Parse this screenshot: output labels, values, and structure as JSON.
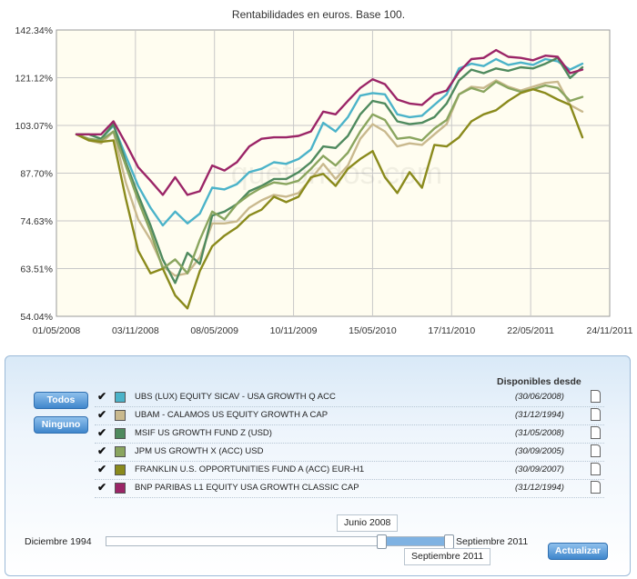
{
  "chart_data": {
    "type": "line",
    "title": "Rentabilidades en euros. Base 100.",
    "watermark": "quefondos.com",
    "y_ticks": [
      "142.34%",
      "121.12%",
      "103.07%",
      "87.70%",
      "74.63%",
      "63.51%",
      "54.04%"
    ],
    "y_tick_values": [
      142.34,
      121.12,
      103.07,
      87.7,
      74.63,
      63.51,
      54.04
    ],
    "x_ticks": [
      "01/05/2008",
      "03/11/2008",
      "08/05/2009",
      "10/11/2009",
      "15/05/2010",
      "17/11/2010",
      "22/05/2011",
      "24/11/2011"
    ],
    "ylim": [
      54.04,
      142.34
    ],
    "scale": "log",
    "grid": true,
    "background": "#fffdf0",
    "series": [
      {
        "name": "UBS (LUX) EQUITY SICAV - USA GROWTH Q ACC",
        "color": "#4bb3c9",
        "values": [
          100,
          100,
          98.5,
          103,
          93,
          84,
          78,
          73.5,
          77,
          74,
          76.5,
          83.5,
          83,
          84.5,
          88,
          89,
          91,
          90.5,
          92,
          95,
          104,
          101,
          106,
          114,
          115,
          114.5,
          107,
          106,
          106.5,
          110.5,
          114.5,
          125,
          127,
          126,
          129,
          126.5,
          127.5,
          126.5,
          129,
          128,
          124.5,
          127
        ]
      },
      {
        "name": "UBAM - CALAMOS US EQUITY GROWTH A CAP",
        "color": "#c9b98e",
        "values": [
          100,
          98,
          97,
          101,
          85,
          75,
          70,
          64,
          62,
          62.5,
          66,
          74,
          74,
          74.5,
          78,
          80,
          81.5,
          81,
          82,
          86,
          90.5,
          86,
          90,
          98.5,
          103.5,
          101,
          96,
          97,
          96.5,
          100,
          103.5,
          114.5,
          117.5,
          117,
          120,
          117.5,
          116,
          117.5,
          119,
          119.5,
          110.5,
          108
        ]
      },
      {
        "name": "MSIF US GROWTH FUND Z (USD)",
        "color": "#4f8a5e",
        "values": [
          100,
          100,
          98.5,
          103.5,
          91,
          81.5,
          73.5,
          65.5,
          60.5,
          67,
          64.5,
          76,
          77,
          79,
          82.5,
          84,
          86,
          86,
          88,
          91,
          96,
          95.5,
          99.5,
          107,
          112,
          111,
          104.5,
          103.5,
          104,
          106,
          111,
          120,
          124.5,
          123,
          125,
          124,
          125.5,
          125,
          127,
          129.5,
          121,
          125.5
        ]
      },
      {
        "name": "JPM US GROWTH X (ACC) USD",
        "color": "#8aa55f",
        "values": [
          100,
          98.5,
          98,
          101,
          90,
          80,
          72,
          63.5,
          65.5,
          62.5,
          70,
          77,
          75,
          79,
          81.5,
          83.5,
          85,
          84.5,
          85.5,
          89,
          93,
          90,
          94,
          101,
          107,
          105,
          98.5,
          99,
          98,
          102,
          105,
          114.5,
          117,
          115.5,
          119.5,
          117,
          115.5,
          116.5,
          118,
          117,
          112,
          113.5
        ]
      },
      {
        "name": "FRANKLIN U.S. OPPORTUNITIES FUND A (ACC) EUR-H1",
        "color": "#8a8a1c",
        "values": [
          100,
          98,
          97.5,
          98,
          80.5,
          67.5,
          62.5,
          63.5,
          58,
          55.5,
          63,
          68.5,
          71,
          73,
          76,
          77.5,
          81,
          79.5,
          81,
          86.5,
          87.5,
          84,
          89,
          92,
          94.5,
          86.5,
          82,
          88,
          83.5,
          96.5,
          96,
          99,
          104.5,
          107,
          108.5,
          112,
          115,
          116.5,
          115,
          112.5,
          110.5,
          99
        ]
      },
      {
        "name": "BNP PARIBAS L1 EQUITY USA GROWTH CLASSIC CAP",
        "color": "#9b2567",
        "values": [
          100,
          100,
          100,
          104.5,
          97,
          89.5,
          85.5,
          81.5,
          86.5,
          81.5,
          82.5,
          90,
          88.5,
          91,
          96,
          98.5,
          99,
          99,
          99.5,
          101,
          108,
          107,
          112,
          117,
          120.5,
          118.5,
          112.5,
          111,
          110.5,
          114.5,
          116,
          123.5,
          129,
          129.5,
          133,
          130,
          129.5,
          128.5,
          130.5,
          130,
          123,
          124.5
        ]
      }
    ]
  },
  "legend": {
    "header": "Disponibles desde",
    "check_mark": "✔",
    "items": [
      {
        "name": "UBS (LUX) EQUITY SICAV - USA GROWTH Q ACC",
        "date": "(30/06/2008)",
        "color": "#4bb3c9"
      },
      {
        "name": "UBAM - CALAMOS US EQUITY GROWTH A CAP",
        "date": "(31/12/1994)",
        "color": "#c9b98e"
      },
      {
        "name": "MSIF US GROWTH FUND Z (USD)",
        "date": "(31/05/2008)",
        "color": "#4f8a5e"
      },
      {
        "name": "JPM US GROWTH X (ACC) USD",
        "date": "(30/09/2005)",
        "color": "#8aa55f"
      },
      {
        "name": "FRANKLIN U.S. OPPORTUNITIES FUND A (ACC) EUR-H1",
        "date": "(30/09/2007)",
        "color": "#8a8a1c"
      },
      {
        "name": "BNP PARIBAS L1 EQUITY USA GROWTH CLASSIC CAP",
        "date": "(31/12/1994)",
        "color": "#9b2567"
      }
    ]
  },
  "buttons": {
    "all": "Todos",
    "none": "Ninguno",
    "update": "Actualizar"
  },
  "slider": {
    "min_label": "Diciembre 1994",
    "max_label": "Septiembre 2011",
    "start_label": "Junio 2008",
    "end_label": "Septiembre 2011",
    "start_fraction": 0.8,
    "end_fraction": 0.995
  }
}
